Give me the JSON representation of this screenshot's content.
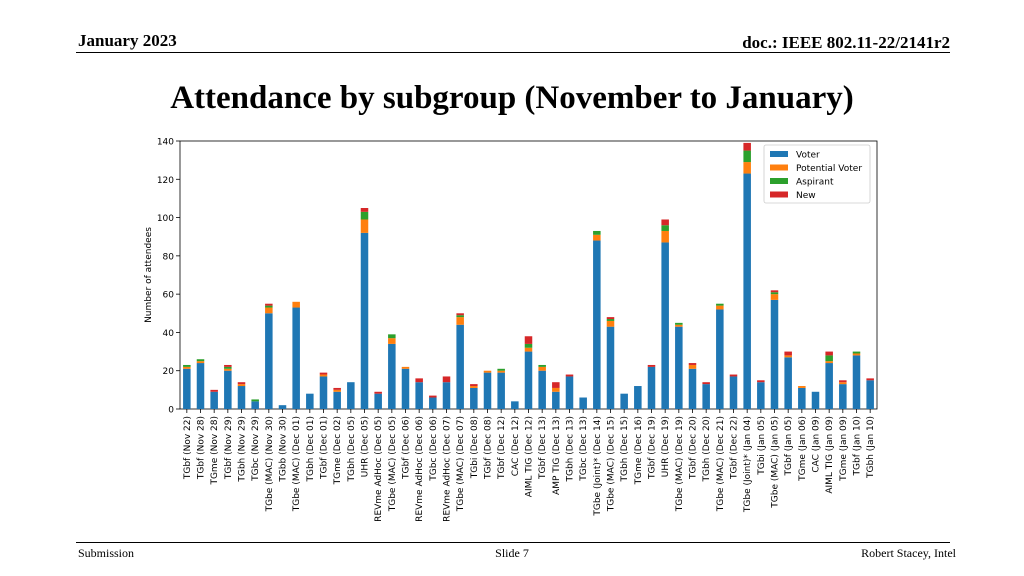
{
  "header": {
    "date": "January 2023",
    "doc_id": "doc.: IEEE 802.11-22/2141r2"
  },
  "title": "Attendance by subgroup (November to January)",
  "footer": {
    "left": "Submission",
    "center": "Slide 7",
    "right": "Robert Stacey, Intel"
  },
  "colors": {
    "Voter": "#1f77b4",
    "Potential Voter": "#ff7f0e",
    "Aspirant": "#2ca02c",
    "New": "#d62728"
  },
  "chart_data": {
    "type": "bar",
    "stacked": true,
    "title": "",
    "xlabel": "",
    "ylabel": "Number of attendees",
    "ylim": [
      0,
      140
    ],
    "yticks": [
      0,
      20,
      40,
      60,
      80,
      100,
      120,
      140
    ],
    "grid": false,
    "legend_position": "top-right",
    "categories": [
      "TGbf (Nov 22)",
      "TGbf (Nov 28)",
      "TGme (Nov 28)",
      "TGbf (Nov 29)",
      "TGbh (Nov 29)",
      "TGbc (Nov 29)",
      "TGbe (MAC) (Nov 30)",
      "TGbb (Nov 30)",
      "TGbe (MAC) (Dec 01)",
      "TGbh (Dec 01)",
      "TGbf (Dec 01)",
      "TGme (Dec 02)",
      "TGbh (Dec 05)",
      "UHR (Dec 05)",
      "REVme AdHoc (Dec 05)",
      "TGbe (MAC) (Dec 05)",
      "TGbf (Dec 06)",
      "REVme AdHoc (Dec 06)",
      "TGbc (Dec 06)",
      "REVme AdHoc (Dec 07)",
      "TGbe (MAC) (Dec 07)",
      "TGbi (Dec 08)",
      "TGbf (Dec 08)",
      "TGbf (Dec 12)",
      "CAC (Dec 12)",
      "AIML TIG (Dec 12)",
      "TGbf (Dec 13)",
      "AMP TIG (Dec 13)",
      "TGbh (Dec 13)",
      "TGbc (Dec 13)",
      "TGbe (Joint)* (Dec 14)",
      "TGbe (MAC) (Dec 15)",
      "TGbh (Dec 15)",
      "TGme (Dec 16)",
      "TGbf (Dec 19)",
      "UHR (Dec 19)",
      "TGbe (MAC) (Dec 19)",
      "TGbf (Dec 20)",
      "TGbh (Dec 20)",
      "TGbe (MAC) (Dec 21)",
      "TGbf (Dec 22)",
      "TGbe (Joint)* (Jan 04)",
      "TGbi (Jan 05)",
      "TGbe (MAC) (Jan 05)",
      "TGbf (Jan 05)",
      "TGme (Jan 06)",
      "CAC (Jan 09)",
      "AIML TIG (Jan 09)",
      "TGme (Jan 09)",
      "TGbf (Jan 10)",
      "TGbh (Jan 10)"
    ],
    "series": [
      {
        "name": "Voter",
        "values": [
          21,
          24,
          9,
          20,
          12,
          4,
          50,
          2,
          53,
          8,
          17,
          9,
          14,
          92,
          8,
          34,
          21,
          14,
          6,
          14,
          44,
          11,
          19,
          19,
          4,
          30,
          20,
          9,
          17,
          6,
          88,
          43,
          8,
          12,
          22,
          87,
          43,
          21,
          13,
          52,
          17,
          123,
          14,
          57,
          27,
          11,
          9,
          24,
          13,
          28,
          15
        ]
      },
      {
        "name": "Potential Voter",
        "values": [
          1,
          1,
          0,
          1,
          1,
          0,
          3,
          0,
          3,
          0,
          1,
          1,
          0,
          7,
          0,
          3,
          1,
          0,
          0,
          0,
          4,
          1,
          1,
          1,
          0,
          2,
          2,
          2,
          0,
          0,
          3,
          3,
          0,
          0,
          0,
          6,
          1,
          2,
          0,
          2,
          0,
          6,
          0,
          3,
          1,
          1,
          0,
          1,
          1,
          1,
          0
        ]
      },
      {
        "name": "Aspirant",
        "values": [
          1,
          1,
          0,
          1,
          0,
          1,
          1,
          0,
          0,
          0,
          0,
          0,
          0,
          4,
          0,
          2,
          0,
          0,
          0,
          0,
          1,
          0,
          0,
          1,
          0,
          2,
          1,
          0,
          0,
          0,
          2,
          1,
          0,
          0,
          0,
          3,
          1,
          0,
          0,
          1,
          0,
          6,
          0,
          1,
          0,
          0,
          0,
          3,
          0,
          1,
          0
        ]
      },
      {
        "name": "New",
        "values": [
          0,
          0,
          1,
          1,
          1,
          0,
          1,
          0,
          0,
          0,
          1,
          1,
          0,
          2,
          1,
          0,
          0,
          2,
          1,
          3,
          1,
          1,
          0,
          0,
          0,
          4,
          0,
          3,
          1,
          0,
          0,
          1,
          0,
          0,
          1,
          3,
          0,
          1,
          1,
          0,
          1,
          4,
          1,
          1,
          2,
          0,
          0,
          2,
          1,
          0,
          1
        ]
      }
    ]
  }
}
